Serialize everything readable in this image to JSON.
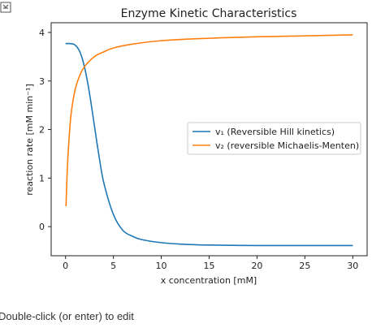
{
  "footer_hint": "Double-click (or enter) to edit",
  "collapse_icon": "collapse-cell-icon",
  "chart_data": {
    "type": "line",
    "title": "Enzyme Kinetic Characteristics",
    "xlabel": "x concentration [mM]",
    "ylabel": "reaction rate [mM min⁻¹]",
    "xlim": [
      -1.5,
      31.5
    ],
    "ylim": [
      -0.6,
      4.2
    ],
    "xticks": [
      0,
      5,
      10,
      15,
      20,
      25,
      30
    ],
    "yticks": [
      0,
      1,
      2,
      3,
      4
    ],
    "grid": false,
    "legend_position": "center-right",
    "series": [
      {
        "name": "v₁ (Reversible Hill kinetics)",
        "color": "#1f77b4",
        "x": [
          0,
          0.5,
          1,
          1.5,
          2,
          2.5,
          3,
          3.5,
          4,
          5,
          6,
          7,
          8,
          10,
          12,
          15,
          20,
          25,
          30
        ],
        "y": [
          3.77,
          3.77,
          3.74,
          3.6,
          3.27,
          2.75,
          2.1,
          1.45,
          0.9,
          0.25,
          -0.08,
          -0.2,
          -0.27,
          -0.33,
          -0.36,
          -0.38,
          -0.39,
          -0.39,
          -0.39
        ]
      },
      {
        "name": "v₂ (reversible Michaelis-Menten)",
        "color": "#ff7f0e",
        "x": [
          0.05,
          0.2,
          0.4,
          0.6,
          1,
          1.5,
          2,
          3,
          4,
          5,
          7,
          10,
          15,
          20,
          25,
          30
        ],
        "y": [
          0.42,
          1.25,
          1.9,
          2.35,
          2.82,
          3.12,
          3.3,
          3.5,
          3.6,
          3.68,
          3.76,
          3.83,
          3.88,
          3.91,
          3.93,
          3.95
        ]
      }
    ]
  }
}
